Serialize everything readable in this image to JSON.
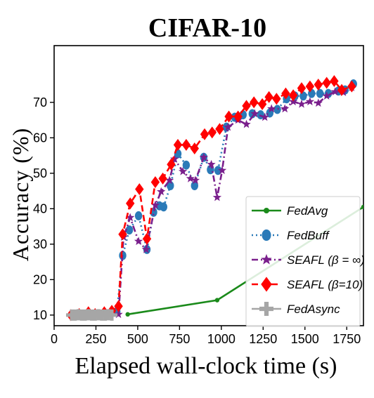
{
  "chart_data": {
    "type": "line",
    "title": "CIFAR-10",
    "xlabel": "Elapsed wall-clock time (s)",
    "ylabel": "Accuracy (%)",
    "xlim": [
      0,
      1850
    ],
    "ylim": [
      7,
      86
    ],
    "xticks": [
      0,
      250,
      500,
      750,
      1000,
      1250,
      1500,
      1750
    ],
    "yticks": [
      10,
      20,
      30,
      40,
      50,
      60,
      70
    ],
    "grid": false,
    "legend_position": "lower-right",
    "series": [
      {
        "name": "FedAvg",
        "color": "#1a8a1a",
        "marker": "circle-small",
        "line": "solid",
        "x": [
          440,
          975,
          1850
        ],
        "y": [
          10.2,
          14.2,
          40.5
        ]
      },
      {
        "name": "FedBuff",
        "color": "#2a7ab8",
        "marker": "ellipse",
        "line": "dotted",
        "x": [
          375,
          410,
          450,
          505,
          555,
          595,
          630,
          655,
          695,
          740,
          790,
          840,
          895,
          935,
          980,
          1030,
          1080,
          1130,
          1185,
          1235,
          1290,
          1335,
          1390,
          1440,
          1490,
          1540,
          1590,
          1640,
          1700,
          1740,
          1790
        ],
        "y": [
          11,
          26.8,
          34,
          38,
          28.5,
          39,
          40.8,
          40.5,
          46.5,
          55.5,
          52.3,
          46.5,
          54.5,
          51,
          50.8,
          63,
          65.8,
          66.5,
          66.8,
          66.5,
          67,
          68,
          71,
          71.8,
          71.8,
          72.5,
          72.5,
          72.5,
          73.2,
          73.5,
          75.2
        ]
      },
      {
        "name": "SEAFL (β = ∞)",
        "color": "#7a1f8c",
        "marker": "star",
        "line": "dashdot",
        "x": [
          385,
          415,
          455,
          505,
          550,
          605,
          640,
          690,
          720,
          770,
          815,
          845,
          895,
          940,
          975,
          1005,
          1040,
          1100,
          1150,
          1200,
          1260,
          1300,
          1380,
          1430,
          1480,
          1530,
          1580,
          1630,
          1680,
          1730,
          1780
        ],
        "y": [
          10.2,
          32,
          37.5,
          30.8,
          28.5,
          41,
          44.8,
          48,
          54,
          50.5,
          48.5,
          48,
          54.5,
          52.5,
          43.2,
          50.8,
          63,
          65,
          63.8,
          66.8,
          65.8,
          68.2,
          68.2,
          70.2,
          69.5,
          70.2,
          69.8,
          71.8,
          73,
          72.8,
          74.2
        ]
      },
      {
        "name": "SEAFL (β=10)",
        "color": "#ff0000",
        "marker": "diamond",
        "line": "dashed",
        "x": [
          100,
          150,
          205,
          245,
          300,
          345,
          385,
          410,
          455,
          510,
          555,
          605,
          650,
          700,
          740,
          790,
          840,
          900,
          945,
          990,
          1045,
          1100,
          1150,
          1195,
          1245,
          1285,
          1330,
          1385,
          1430,
          1480,
          1530,
          1580,
          1630,
          1675,
          1720,
          1780
        ],
        "y": [
          10,
          10.3,
          10.8,
          10.3,
          10.8,
          11.2,
          12.5,
          32.8,
          41.5,
          45.5,
          31.5,
          47.5,
          48.5,
          52.5,
          58,
          58,
          57,
          61,
          61.5,
          62.5,
          66,
          66,
          69,
          70,
          69.5,
          71.5,
          71,
          72.5,
          72,
          74,
          74.5,
          75,
          75.5,
          76,
          73.5,
          74.5
        ]
      },
      {
        "name": "FedAsync",
        "color": "#a6a6a6",
        "marker": "cross",
        "line": "solid",
        "x": [
          105,
          125,
          145,
          165,
          185,
          205,
          225,
          245,
          265,
          285,
          305,
          325,
          345
        ],
        "y": [
          10,
          10,
          10.1,
          10,
          10,
          10.1,
          10,
          10,
          10.1,
          10,
          10,
          10.1,
          10
        ]
      }
    ]
  }
}
